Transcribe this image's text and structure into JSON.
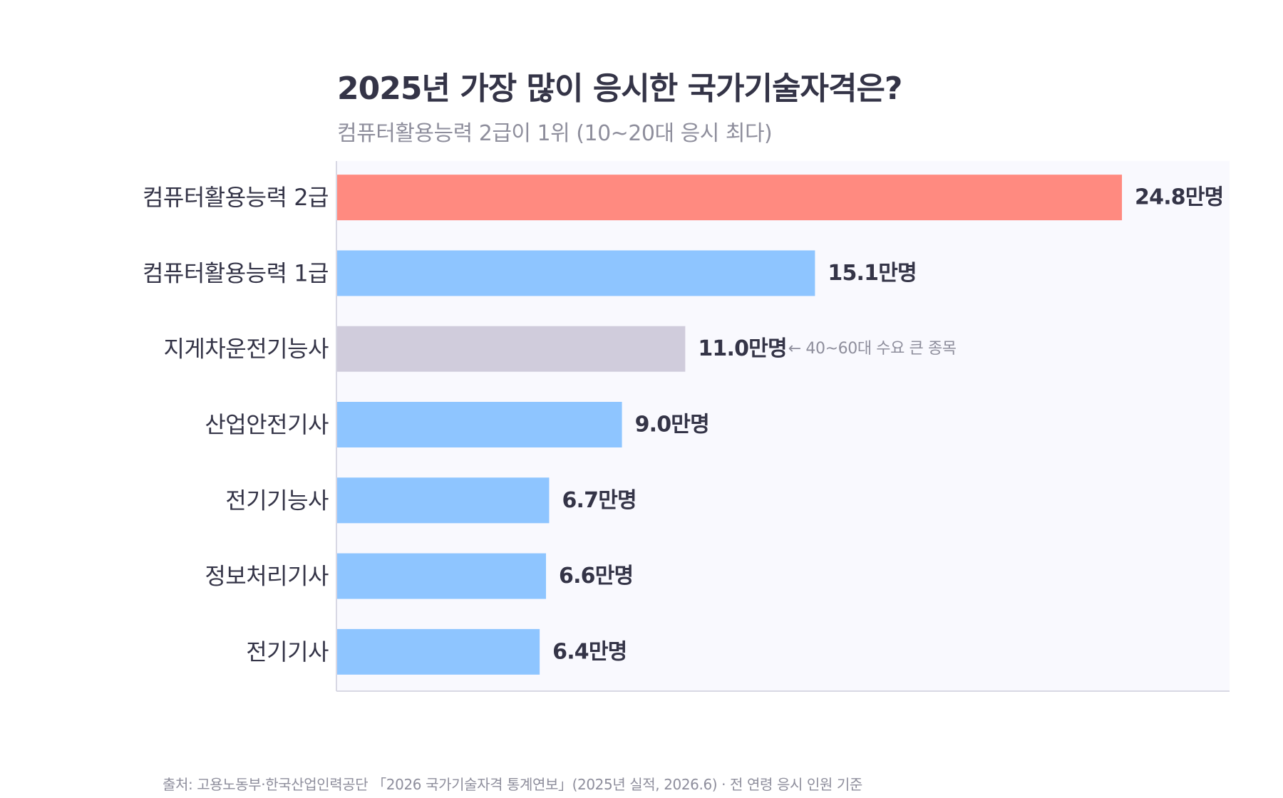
{
  "title": "2025년 가장 많이 응시한 국가기술자격은?",
  "subtitle": "컴퓨터활용능력 2급이 1위 (10~20대 응시 최다)",
  "source": "출처: 고용노동부·한국산업인력공단 「2026 국가기술자격 통계연보」(2025년 실적, 2026.6) · 전 연령 응시 인원 기준",
  "colors": {
    "highlight": "#ff8a80",
    "default": "#8ec5ff",
    "muted": "#d0ccdc",
    "plot_bg": "#f9f9fe",
    "label_text": "#343447",
    "annotation_text": "#8e8e9c"
  },
  "chart_data": {
    "type": "bar",
    "orientation": "horizontal",
    "title": "2025년 가장 많이 응시한 국가기술자격은?",
    "subtitle": "컴퓨터활용능력 2급이 1위 (10~20대 응시 최다)",
    "xlabel": "",
    "ylabel": "",
    "unit": "만명",
    "xlim": [
      0,
      28.2
    ],
    "grid": false,
    "legend": "none",
    "categories": [
      "컴퓨터활용능력 2급",
      "컴퓨터활용능력 1급",
      "지게차운전기능사",
      "산업안전기사",
      "전기기능사",
      "정보처리기사",
      "전기기사"
    ],
    "values": [
      24.8,
      15.1,
      11.0,
      9.0,
      6.7,
      6.6,
      6.4
    ],
    "value_labels": [
      "24.8만명",
      "15.1만명",
      "11.0만명",
      "9.0만명",
      "6.7만명",
      "6.6만명",
      "6.4만명"
    ],
    "bar_colors": [
      "highlight",
      "default",
      "muted",
      "default",
      "default",
      "default",
      "default"
    ],
    "annotations": [
      {
        "category_index": 2,
        "text": "← 40~60대 수요 큰 종목"
      }
    ]
  }
}
